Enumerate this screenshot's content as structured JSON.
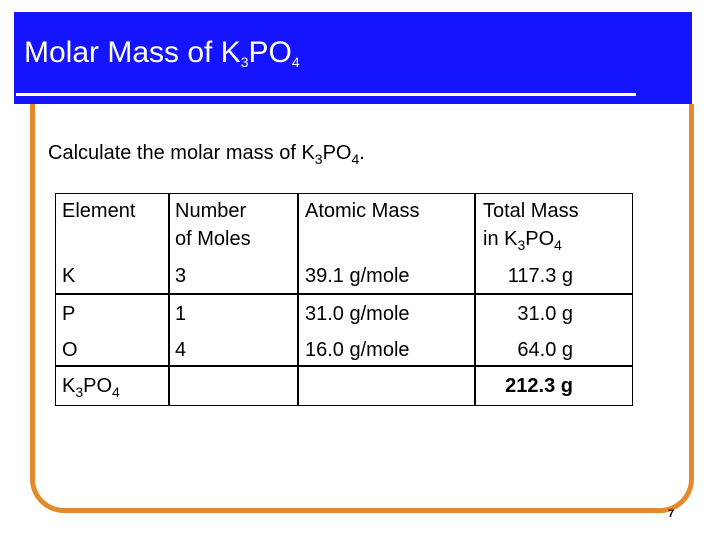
{
  "title": [
    "Molar Mass of K",
    "3",
    "PO",
    "4"
  ],
  "intro": [
    "Calculate the molar mass of K",
    "3",
    "PO",
    "4",
    "."
  ],
  "table": {
    "headers": [
      [
        "Element"
      ],
      [
        "Number of Moles"
      ],
      [
        "Atomic Mass"
      ],
      [
        "Total Mass in K",
        "3",
        "PO",
        "4"
      ]
    ],
    "rows": [
      {
        "element": [
          "K"
        ],
        "moles": "3",
        "atomic_mass": "39.1 g/mole",
        "total": "117.3 g"
      },
      {
        "element": [
          "P"
        ],
        "moles": "1",
        "atomic_mass": "31.0 g/mole",
        "total": "31.0 g"
      },
      {
        "element": [
          "O"
        ],
        "moles": "4",
        "atomic_mass": "16.0 g/mole",
        "total": "64.0 g"
      },
      {
        "element": [
          "K",
          "3",
          "PO",
          "4"
        ],
        "total": "212.3 g"
      }
    ]
  },
  "page_number": "7"
}
